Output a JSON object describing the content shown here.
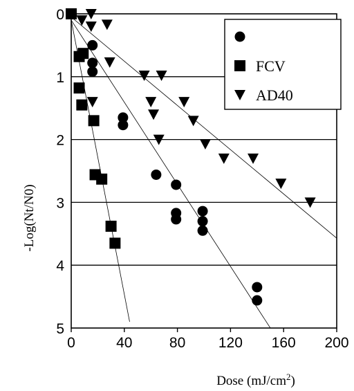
{
  "chart_data": {
    "type": "scatter",
    "title": "",
    "xlabel": "Dose (mJ/cm",
    "xlabel_sup": "2",
    "xlabel_close": ")",
    "ylabel": "-Log(Nt/N0)",
    "xlim": [
      0,
      200
    ],
    "ylim": [
      0,
      5
    ],
    "y_inverted": true,
    "x_ticks": [
      "0",
      "40",
      "80",
      "120",
      "160",
      "200"
    ],
    "y_ticks": [
      "0",
      "1",
      "2",
      "3",
      "4",
      "5"
    ],
    "grid": "horizontal",
    "legend_position": "top-right",
    "series": [
      {
        "name": "",
        "marker": "circle",
        "points": [
          [
            0,
            0
          ],
          [
            16,
            0.5
          ],
          [
            16,
            0.78
          ],
          [
            16,
            0.92
          ],
          [
            39,
            1.65
          ],
          [
            39,
            1.77
          ],
          [
            64,
            2.56
          ],
          [
            79,
            2.72
          ],
          [
            79,
            3.17
          ],
          [
            79,
            3.27
          ],
          [
            99,
            3.14
          ],
          [
            99,
            3.3
          ],
          [
            99,
            3.45
          ],
          [
            140,
            4.35
          ],
          [
            140,
            4.56
          ]
        ],
        "fit": [
          [
            0,
            0.1
          ],
          [
            150,
            5
          ]
        ]
      },
      {
        "name": "FCV",
        "marker": "square",
        "points": [
          [
            0,
            0
          ],
          [
            6,
            0.68
          ],
          [
            9,
            0.63
          ],
          [
            6,
            1.18
          ],
          [
            8,
            1.45
          ],
          [
            17,
            1.7
          ],
          [
            18,
            2.56
          ],
          [
            23,
            2.63
          ],
          [
            30,
            3.38
          ],
          [
            33,
            3.65
          ]
        ],
        "fit": [
          [
            0,
            0.1
          ],
          [
            44,
            4.9
          ]
        ]
      },
      {
        "name": "AD40",
        "marker": "triangle-down",
        "points": [
          [
            0,
            0
          ],
          [
            8,
            0.1
          ],
          [
            15,
            0
          ],
          [
            15,
            0.2
          ],
          [
            27,
            0.17
          ],
          [
            29,
            0.77
          ],
          [
            16,
            1.4
          ],
          [
            55,
            0.98
          ],
          [
            68,
            0.98
          ],
          [
            60,
            1.4
          ],
          [
            62,
            1.6
          ],
          [
            66,
            2.0
          ],
          [
            85,
            1.4
          ],
          [
            92,
            1.7
          ],
          [
            101,
            2.07
          ],
          [
            115,
            2.3
          ],
          [
            137,
            2.3
          ],
          [
            158,
            2.7
          ],
          [
            180,
            3.0
          ]
        ],
        "fit": [
          [
            0,
            0.05
          ],
          [
            200,
            3.57
          ]
        ]
      }
    ]
  }
}
